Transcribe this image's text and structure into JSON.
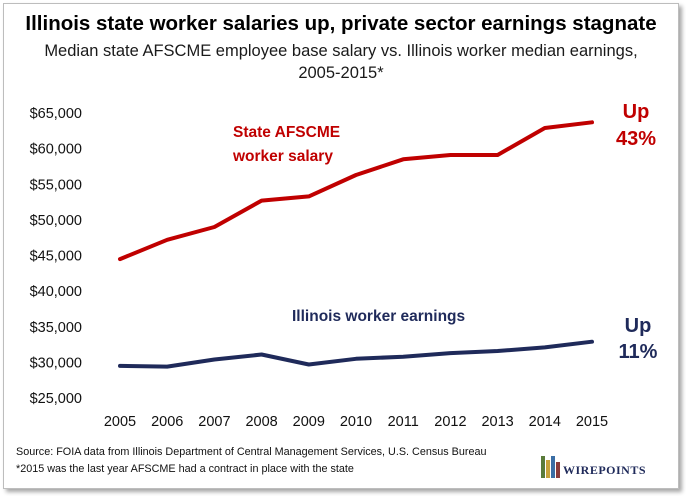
{
  "chart_data": {
    "type": "line",
    "title": "Illinois state worker salaries up, private sector earnings stagnate",
    "subtitle_line1": "Median state AFSCME employee base salary vs. Illinois worker median earnings,",
    "subtitle_line2": "2005-2015*",
    "x": [
      "2005",
      "2006",
      "2007",
      "2008",
      "2009",
      "2010",
      "2011",
      "2012",
      "2013",
      "2014",
      "2015"
    ],
    "y_ticks": [
      "$25,000",
      "$30,000",
      "$35,000",
      "$40,000",
      "$45,000",
      "$50,000",
      "$55,000",
      "$60,000",
      "$65,000"
    ],
    "y_tick_values": [
      25000,
      30000,
      35000,
      40000,
      45000,
      50000,
      55000,
      60000,
      65000
    ],
    "ylim": [
      25000,
      65000
    ],
    "grid": false,
    "series": [
      {
        "name_line1": "State AFSCME",
        "name_line2": "worker salary",
        "change_line1": "Up",
        "change_line2": "43%",
        "color": "#c00000",
        "values": [
          44500,
          47200,
          49000,
          52700,
          53300,
          56300,
          58500,
          59100,
          59100,
          62900,
          63700
        ]
      },
      {
        "name": "Illinois worker earnings",
        "change_line1": "Up",
        "change_line2": "11%",
        "color": "#1f2a5a",
        "values": [
          29500,
          29400,
          30400,
          31100,
          29700,
          30500,
          30800,
          31300,
          31600,
          32100,
          32900
        ]
      }
    ],
    "source": "Source: FOIA data from Illinois Department of Central Management Services, U.S. Census Bureau",
    "footnote": "*2015 was the last year AFSCME had a contract in place with the state"
  },
  "logo_text": "WIREPOINTS"
}
